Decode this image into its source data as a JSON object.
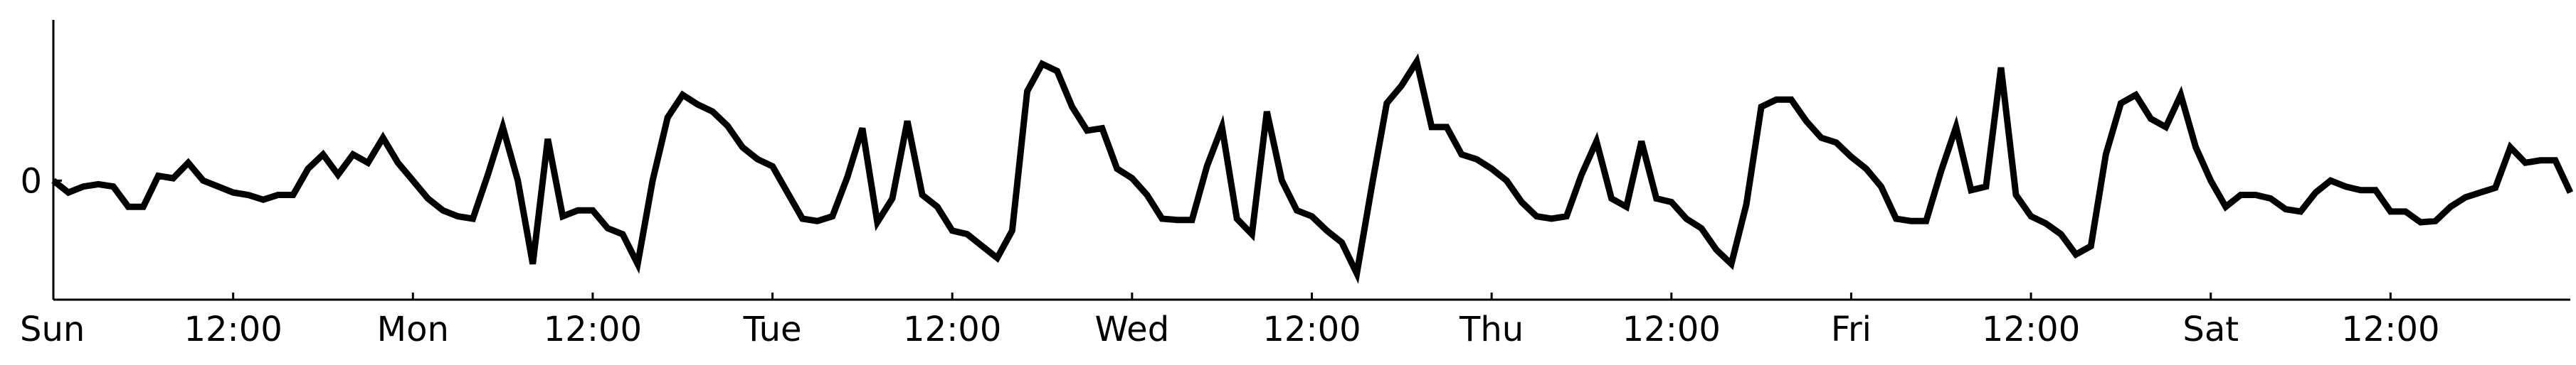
{
  "chart_data": {
    "type": "line",
    "title": "",
    "xlabel": "",
    "ylabel": "",
    "x_ticks": [
      "Sun",
      "12:00",
      "Mon",
      "12:00",
      "Tue",
      "12:00",
      "Wed",
      "12:00",
      "Thu",
      "12:00",
      "Fri",
      "12:00",
      "Sat",
      "12:00"
    ],
    "y_ticks": [
      0
    ],
    "y_tick_labels": [
      "0"
    ],
    "xlim": [
      0,
      168
    ],
    "ylim": [
      -1.0,
      1.35
    ],
    "grid": false,
    "series": [
      {
        "color": "#000000",
        "values": [
          0.0,
          -0.1,
          -0.05,
          -0.03,
          -0.05,
          -0.22,
          -0.22,
          0.04,
          0.02,
          0.15,
          0.0,
          -0.05,
          -0.1,
          -0.12,
          -0.16,
          -0.12,
          -0.12,
          0.1,
          0.22,
          0.05,
          0.22,
          0.15,
          0.36,
          0.15,
          0.0,
          -0.15,
          -0.25,
          -0.3,
          -0.32,
          0.05,
          0.45,
          0.0,
          -0.7,
          0.35,
          -0.3,
          -0.25,
          -0.25,
          -0.4,
          -0.45,
          -0.7,
          0.0,
          0.53,
          0.72,
          0.64,
          0.58,
          0.46,
          0.28,
          0.18,
          0.12,
          -0.1,
          -0.32,
          -0.34,
          -0.3,
          0.03,
          0.44,
          -0.35,
          -0.15,
          0.5,
          -0.12,
          -0.22,
          -0.42,
          -0.45,
          -0.55,
          -0.65,
          -0.42,
          0.75,
          0.98,
          0.92,
          0.62,
          0.42,
          0.44,
          0.1,
          0.02,
          -0.12,
          -0.32,
          -0.33,
          -0.33,
          0.12,
          0.45,
          -0.32,
          -0.45,
          0.58,
          0.0,
          -0.25,
          -0.3,
          -0.42,
          -0.52,
          -0.78,
          -0.05,
          0.65,
          0.8,
          1.0,
          0.45,
          0.45,
          0.22,
          0.18,
          0.1,
          0.0,
          -0.18,
          -0.3,
          -0.32,
          -0.3,
          0.05,
          0.33,
          -0.15,
          -0.22,
          0.33,
          -0.15,
          -0.18,
          -0.32,
          -0.4,
          -0.58,
          -0.7,
          -0.2,
          0.62,
          0.68,
          0.68,
          0.5,
          0.36,
          0.32,
          0.2,
          0.1,
          -0.05,
          -0.32,
          -0.34,
          -0.34,
          0.08,
          0.45,
          -0.08,
          -0.05,
          0.95,
          -0.12,
          -0.3,
          -0.36,
          -0.45,
          -0.62,
          -0.55,
          0.22,
          0.65,
          0.72,
          0.52,
          0.45,
          0.72,
          0.28,
          0.0,
          -0.22,
          -0.12,
          -0.12,
          -0.15,
          -0.24,
          -0.26,
          -0.1,
          0.0,
          -0.05,
          -0.08,
          -0.08,
          -0.26,
          -0.26,
          -0.35,
          -0.34,
          -0.22,
          -0.14,
          -0.1,
          -0.06,
          0.28,
          0.15,
          0.17,
          0.17,
          -0.1
        ]
      }
    ]
  }
}
